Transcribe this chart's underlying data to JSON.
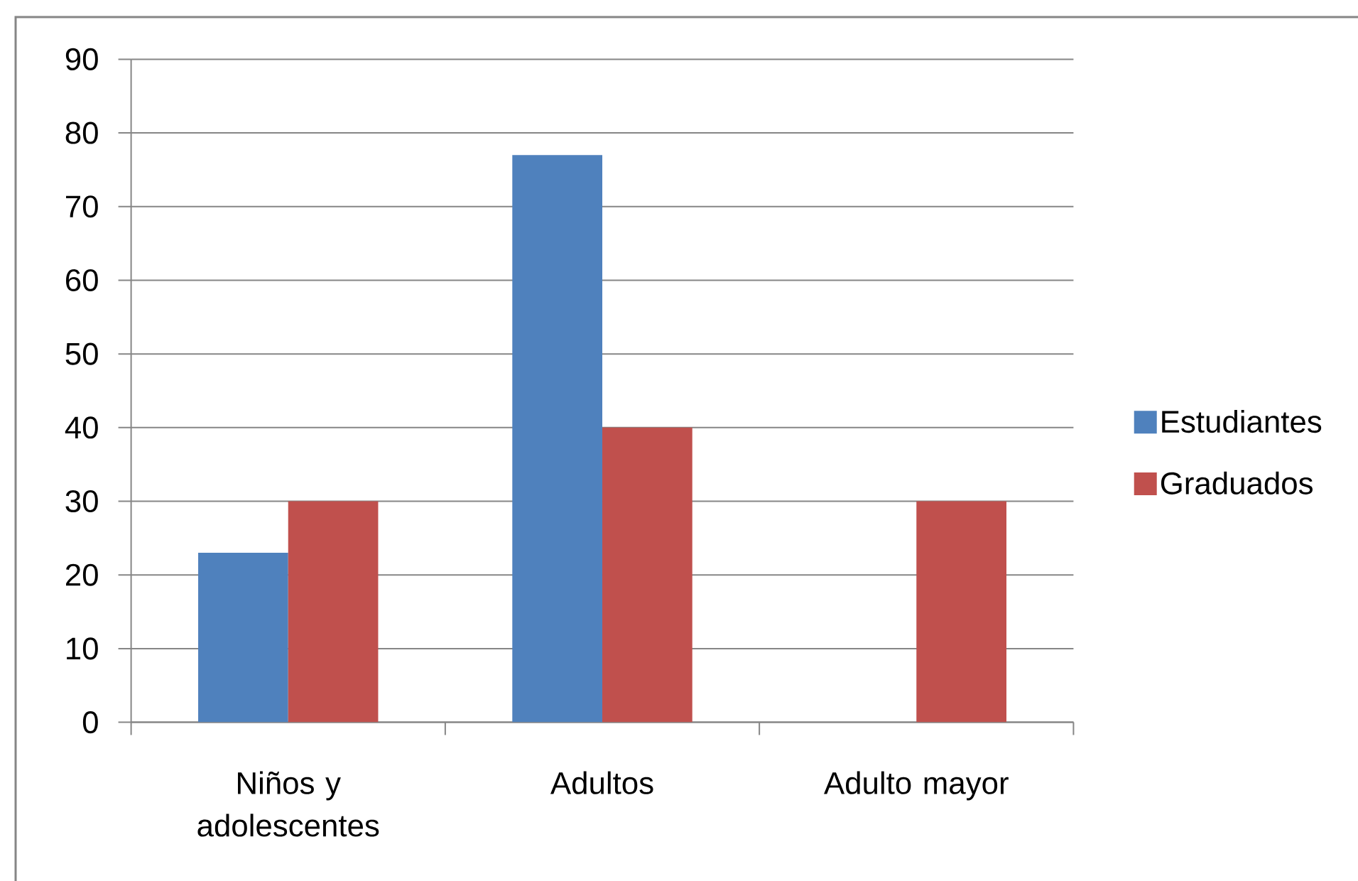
{
  "chart_data": {
    "type": "bar",
    "categories": [
      "Niños y adolescentes",
      "Adultos",
      "Adulto mayor"
    ],
    "series": [
      {
        "name": "Estudiantes",
        "color": "#4f81bd",
        "values": [
          23,
          77,
          null
        ]
      },
      {
        "name": "Graduados",
        "color": "#c0504d",
        "values": [
          30,
          40,
          30
        ]
      }
    ],
    "ylim": [
      0,
      90
    ],
    "yticks": [
      0,
      10,
      20,
      30,
      40,
      50,
      60,
      70,
      80,
      90
    ],
    "grid": "y",
    "legend": "right"
  }
}
